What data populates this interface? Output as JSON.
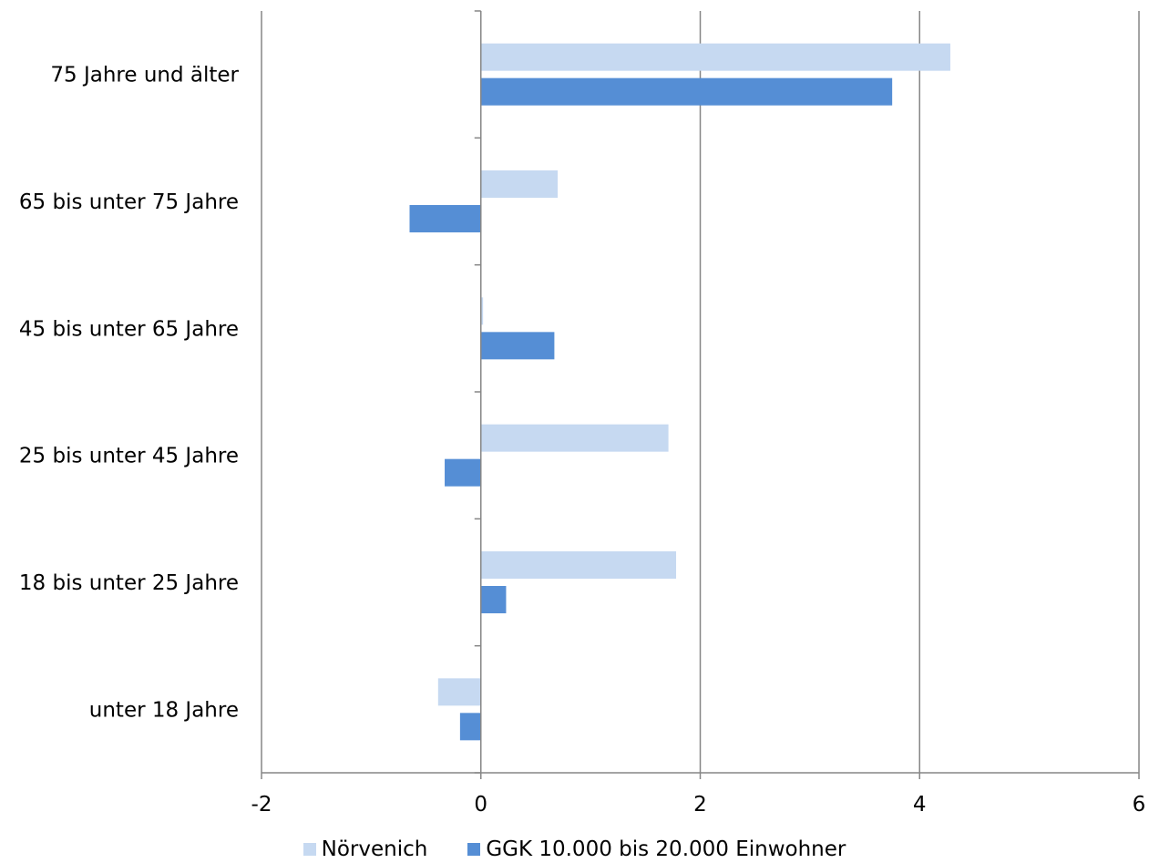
{
  "chart_data": {
    "type": "bar",
    "orientation": "horizontal",
    "categories": [
      "75 Jahre und älter",
      "65 bis unter 75 Jahre",
      "45 bis unter 65 Jahre",
      "25 bis unter 45 Jahre",
      "18 bis unter 25 Jahre",
      "unter 18 Jahre"
    ],
    "series": [
      {
        "name": "Nörvenich",
        "color": "#c6d9f1",
        "values": [
          4.28,
          0.7,
          0.02,
          1.71,
          1.78,
          -0.39
        ]
      },
      {
        "name": "GGK 10.000 bis 20.000 Einwohner",
        "color": "#558ed5",
        "values": [
          3.75,
          -0.65,
          0.67,
          -0.33,
          0.23,
          -0.19
        ]
      }
    ],
    "x_ticks": [
      "-2",
      "0",
      "2",
      "4",
      "6"
    ],
    "xlim": [
      -2,
      6
    ],
    "grid": "vertical",
    "legend_position": "bottom",
    "title": "",
    "xlabel": "",
    "ylabel": ""
  }
}
